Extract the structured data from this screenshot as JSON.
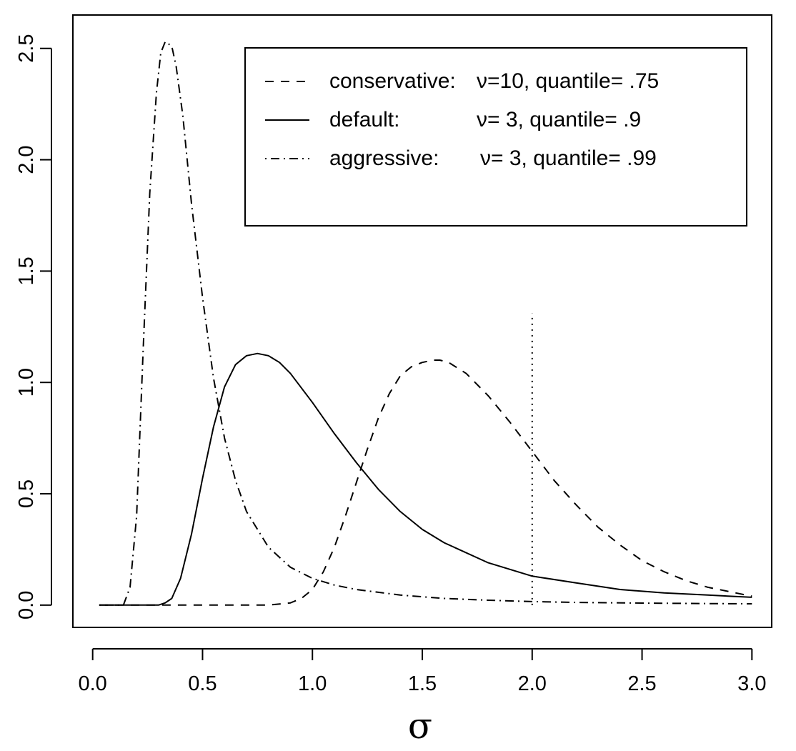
{
  "chart_data": {
    "type": "line",
    "title": "",
    "xlabel": "σ",
    "ylabel": "",
    "xlim": [
      -0.09,
      3.09
    ],
    "ylim": [
      -0.1,
      2.65
    ],
    "grid": false,
    "x_ticks": [
      "0.0",
      "0.5",
      "1.0",
      "1.5",
      "2.0",
      "2.5",
      "3.0"
    ],
    "y_ticks": [
      "0.0",
      "0.5",
      "1.0",
      "1.5",
      "2.0",
      "2.5"
    ],
    "legend": {
      "placement": "top-right",
      "entries": [
        {
          "linestyle": "dashed",
          "label": "conservative:",
          "params": "ν=10, quantile= .75"
        },
        {
          "linestyle": "solid",
          "label": "default:",
          "params": "ν= 3, quantile= .9"
        },
        {
          "linestyle": "dotdash",
          "label": "aggressive:",
          "params": "ν= 3, quantile= .99"
        }
      ]
    },
    "series": [
      {
        "linestyle": "dashed",
        "x": [
          0.03,
          0.8,
          0.9,
          0.95,
          1.0,
          1.05,
          1.1,
          1.15,
          1.2,
          1.25,
          1.3,
          1.35,
          1.4,
          1.45,
          1.5,
          1.55,
          1.58,
          1.62,
          1.7,
          1.8,
          1.9,
          2.0,
          2.1,
          2.2,
          2.3,
          2.4,
          2.5,
          2.6,
          2.7,
          2.8,
          2.9,
          3.0
        ],
        "y": [
          0.0,
          0.0,
          0.01,
          0.03,
          0.07,
          0.15,
          0.26,
          0.4,
          0.55,
          0.7,
          0.84,
          0.95,
          1.03,
          1.07,
          1.09,
          1.1,
          1.1,
          1.09,
          1.04,
          0.94,
          0.82,
          0.69,
          0.56,
          0.45,
          0.35,
          0.27,
          0.2,
          0.15,
          0.11,
          0.08,
          0.06,
          0.04
        ]
      },
      {
        "linestyle": "solid",
        "x": [
          0.03,
          0.3,
          0.33,
          0.36,
          0.4,
          0.45,
          0.5,
          0.55,
          0.6,
          0.65,
          0.7,
          0.75,
          0.8,
          0.85,
          0.9,
          1.0,
          1.1,
          1.2,
          1.3,
          1.4,
          1.5,
          1.6,
          1.8,
          2.0,
          2.2,
          2.4,
          2.6,
          2.8,
          3.0
        ],
        "y": [
          0.0,
          0.0,
          0.01,
          0.03,
          0.12,
          0.32,
          0.57,
          0.8,
          0.98,
          1.08,
          1.12,
          1.13,
          1.12,
          1.09,
          1.04,
          0.91,
          0.77,
          0.64,
          0.52,
          0.42,
          0.34,
          0.28,
          0.19,
          0.13,
          0.1,
          0.07,
          0.055,
          0.045,
          0.035
        ]
      },
      {
        "linestyle": "dotdash",
        "x": [
          0.03,
          0.14,
          0.17,
          0.2,
          0.23,
          0.26,
          0.29,
          0.31,
          0.33,
          0.36,
          0.38,
          0.41,
          0.45,
          0.5,
          0.55,
          0.6,
          0.65,
          0.7,
          0.8,
          0.9,
          1.0,
          1.1,
          1.2,
          1.4,
          1.6,
          1.8,
          2.0,
          2.2,
          2.5,
          2.8,
          3.0
        ],
        "y": [
          0.0,
          0.0,
          0.08,
          0.4,
          1.15,
          1.85,
          2.3,
          2.48,
          2.53,
          2.51,
          2.42,
          2.2,
          1.8,
          1.38,
          1.02,
          0.75,
          0.56,
          0.42,
          0.26,
          0.17,
          0.12,
          0.09,
          0.07,
          0.045,
          0.03,
          0.022,
          0.016,
          0.012,
          0.009,
          0.007,
          0.006
        ]
      }
    ],
    "reference_line": {
      "x": 2.0,
      "y_from": 0.0,
      "y_to": 1.31,
      "linestyle": "dotted"
    }
  }
}
